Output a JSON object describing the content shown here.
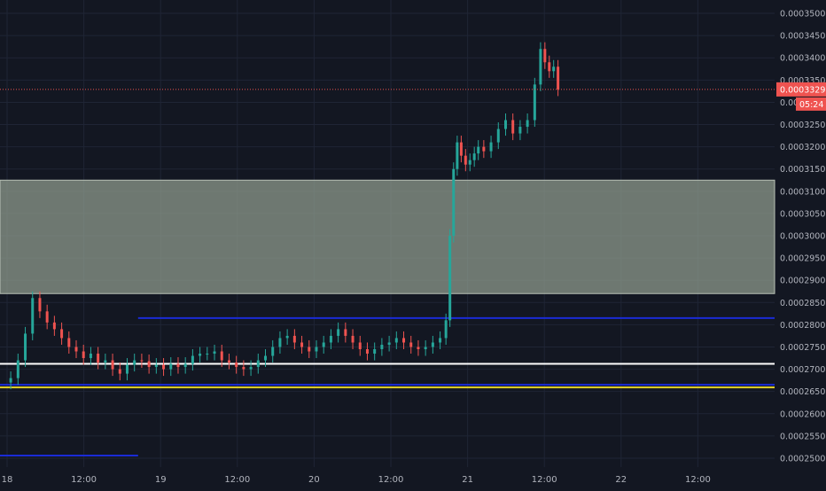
{
  "chart_data": {
    "type": "candlestick",
    "title": "",
    "x_tick_labels": [
      "18",
      "12:00",
      "19",
      "12:00",
      "20",
      "12:00",
      "21",
      "12:00",
      "22",
      "12:00"
    ],
    "y_tick_labels": [
      "0.0003500",
      "0.0003450",
      "0.0003400",
      "0.0003350",
      "0.0003300",
      "0.0003250",
      "0.0003200",
      "0.0003150",
      "0.0003100",
      "0.0003050",
      "0.0003000",
      "0.0002950",
      "0.0002900",
      "0.0002850",
      "0.0002800",
      "0.0002750",
      "0.0002700",
      "0.0002650",
      "0.0002600",
      "0.0002550",
      "0.0002500"
    ],
    "ylim": [
      0.000248,
      0.000353
    ],
    "x_range_hours": [
      0,
      104
    ],
    "grid": true,
    "last_price": "0.0003329",
    "countdown": "05:24",
    "last_price_value": 0.0003329,
    "zone": {
      "low": 0.000287,
      "high": 0.0003125
    },
    "horizontal_levels": [
      {
        "name": "blue-upper",
        "value": 0.0002815,
        "color": "#1a2bd6"
      },
      {
        "name": "white",
        "value": 0.0002712,
        "color": "#ffffff"
      },
      {
        "name": "blue-lower",
        "value": 0.0002665,
        "color": "#1a2bd6"
      },
      {
        "name": "yellow",
        "value": 0.0002659,
        "color": "#e4d42a"
      },
      {
        "name": "blue-bottom",
        "value": 0.0002506,
        "color": "#1a2bd6"
      }
    ],
    "colors": {
      "up": "#26a69a",
      "down": "#ef5350",
      "background": "#131722",
      "grid": "#1f2535",
      "zone": "#8e9a8c",
      "text": "#b2b5be",
      "price_line": "#ef5350"
    },
    "candles": {
      "x_hours": [
        0,
        104
      ],
      "note_points": [
        [
          0.0,
          0.000267
        ],
        [
          1.0,
          0.000268
        ],
        [
          2.0,
          0.000272
        ],
        [
          3.0,
          0.000278
        ],
        [
          4.0,
          0.000286
        ],
        [
          5.0,
          0.000283
        ],
        [
          6.0,
          0.0002805
        ],
        [
          7.0,
          0.000279
        ],
        [
          8.0,
          0.000277
        ],
        [
          9.0,
          0.000275
        ],
        [
          10.0,
          0.000274
        ],
        [
          11.0,
          0.0002725
        ],
        [
          12.0,
          0.0002735
        ],
        [
          13.0,
          0.0002715
        ],
        [
          14.0,
          0.000272
        ],
        [
          15.0,
          0.00027
        ],
        [
          16.0,
          0.000269
        ],
        [
          17.0,
          0.000271
        ],
        [
          18.0,
          0.000272
        ],
        [
          19.0,
          0.0002718
        ],
        [
          20.0,
          0.0002705
        ],
        [
          21.0,
          0.000271
        ],
        [
          22.0,
          0.00027
        ],
        [
          23.0,
          0.0002712
        ],
        [
          24.0,
          0.0002705
        ],
        [
          25.0,
          0.0002712
        ],
        [
          26.0,
          0.000273
        ],
        [
          27.0,
          0.0002735
        ],
        [
          28.0,
          0.0002735
        ],
        [
          29.0,
          0.000274
        ],
        [
          30.0,
          0.000272
        ],
        [
          31.0,
          0.0002715
        ],
        [
          32.0,
          0.0002705
        ],
        [
          33.0,
          0.00027
        ],
        [
          34.0,
          0.0002705
        ],
        [
          35.0,
          0.000272
        ],
        [
          36.0,
          0.000273
        ],
        [
          37.0,
          0.000275
        ],
        [
          38.0,
          0.000277
        ],
        [
          39.0,
          0.0002775
        ],
        [
          40.0,
          0.000276
        ],
        [
          41.0,
          0.000275
        ],
        [
          42.0,
          0.000274
        ],
        [
          43.0,
          0.000275
        ],
        [
          44.0,
          0.000276
        ],
        [
          45.0,
          0.0002775
        ],
        [
          46.0,
          0.000279
        ],
        [
          47.0,
          0.0002775
        ],
        [
          48.0,
          0.000276
        ],
        [
          49.0,
          0.0002745
        ],
        [
          50.0,
          0.0002735
        ],
        [
          51.0,
          0.0002745
        ],
        [
          52.0,
          0.0002755
        ],
        [
          53.0,
          0.000276
        ],
        [
          54.0,
          0.000277
        ],
        [
          55.0,
          0.000276
        ],
        [
          56.0,
          0.000275
        ],
        [
          57.0,
          0.0002745
        ],
        [
          58.0,
          0.000275
        ],
        [
          59.0,
          0.000276
        ],
        [
          60.0,
          0.000277
        ],
        [
          60.6,
          0.000281
        ],
        [
          61.1,
          0.0003
        ],
        [
          61.6,
          0.000315
        ],
        [
          62.1,
          0.000321
        ],
        [
          62.7,
          0.000318
        ],
        [
          63.3,
          0.000316
        ],
        [
          63.9,
          0.000317
        ],
        [
          64.5,
          0.0003185
        ],
        [
          65.0,
          0.00032
        ],
        [
          66.0,
          0.000319
        ],
        [
          67.0,
          0.000321
        ],
        [
          68.0,
          0.000324
        ],
        [
          69.0,
          0.000326
        ],
        [
          70.0,
          0.000323
        ],
        [
          71.0,
          0.0003245
        ],
        [
          72.0,
          0.000326
        ],
        [
          73.0,
          0.000334
        ],
        [
          73.6,
          0.000342
        ],
        [
          74.2,
          0.000339
        ],
        [
          74.8,
          0.000337
        ],
        [
          75.4,
          0.000338
        ],
        [
          76.0,
          0.0003329
        ]
      ]
    }
  }
}
